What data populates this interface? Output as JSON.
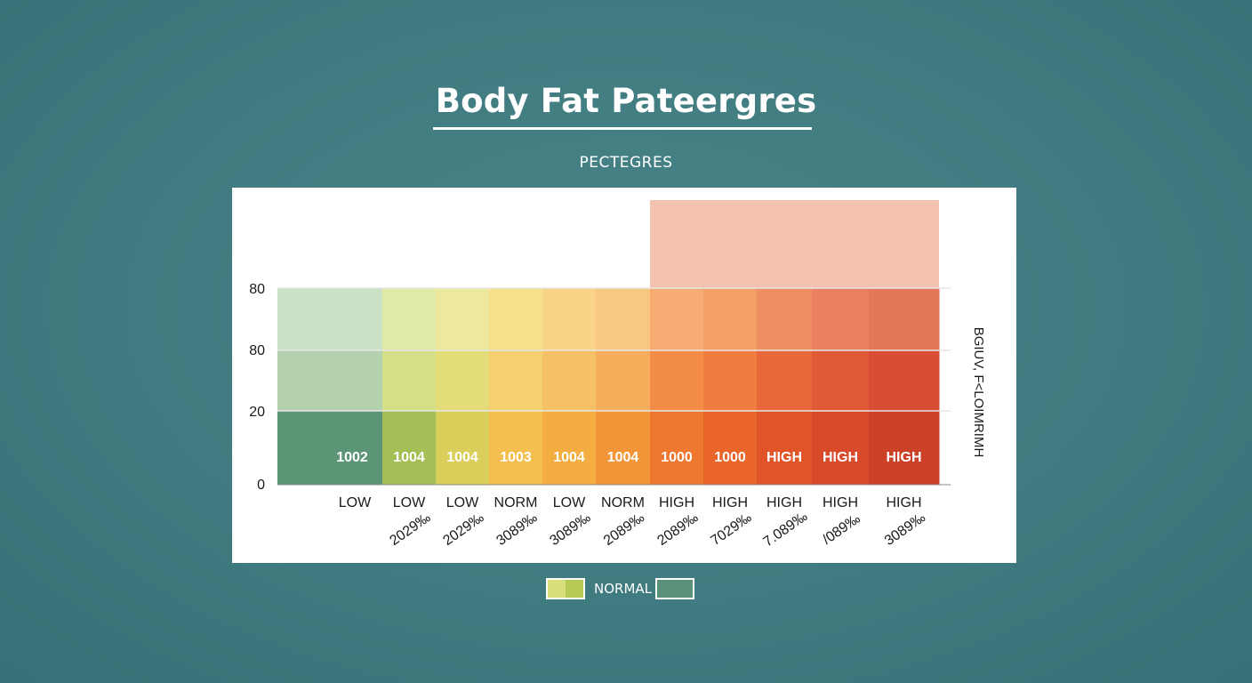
{
  "title": "Body Fat Pateergres",
  "subtitle": "PECTEGRES",
  "chart_data": {
    "type": "heatmap",
    "title": "Body Fat Pateergres",
    "subtitle": "PECTEGRES",
    "ylabel": "BGIUV, F<LOIMRIMH",
    "y_ticks": [
      "80",
      "80",
      "20",
      "0"
    ],
    "grid": true,
    "columns": [
      {
        "bar_label": "1002",
        "category": "LOW",
        "value_label": "",
        "color_top": "#c9e2c6",
        "color_mid": "#b3d1ad",
        "color_bot": "#5d9577"
      },
      {
        "bar_label": "1004",
        "category": "LOW",
        "value_label": "2029‰",
        "color_top": "#dfeaa8",
        "color_mid": "#d4df88",
        "color_bot": "#a5bf57"
      },
      {
        "bar_label": "1004",
        "category": "LOW",
        "value_label": "2029‰",
        "color_top": "#ece89c",
        "color_mid": "#e4dc78",
        "color_bot": "#dacf5a"
      },
      {
        "bar_label": "1003",
        "category": "NORM",
        "value_label": "3089‰",
        "color_top": "#f8e08a",
        "color_mid": "#f6cf6e",
        "color_bot": "#f4be50"
      },
      {
        "bar_label": "1004",
        "category": "LOW",
        "value_label": "3089‰",
        "color_top": "#f8d388",
        "color_mid": "#f6c064",
        "color_bot": "#f4ad40"
      },
      {
        "bar_label": "1004",
        "category": "NORM",
        "value_label": "2089‰",
        "color_top": "#f8c882",
        "color_mid": "#f6ae5c",
        "color_bot": "#f3963a"
      },
      {
        "bar_label": "1000",
        "category": "HIGH",
        "value_label": "2089‰",
        "color_top": "#f6ac72",
        "color_mid": "#f38c48",
        "color_bot": "#ee7830"
      },
      {
        "bar_label": "1000",
        "category": "HIGH",
        "value_label": "7029‰",
        "color_top": "#f59f68",
        "color_mid": "#f07c40",
        "color_bot": "#ea652a"
      },
      {
        "bar_label": "HIGH",
        "category": "HIGH",
        "value_label": "7.089‰",
        "color_top": "#ee8e62",
        "color_mid": "#e8683a",
        "color_bot": "#e05428"
      },
      {
        "bar_label": "HIGH",
        "category": "HIGH",
        "value_label": "/089‰",
        "color_top": "#ea8060",
        "color_mid": "#e05a36",
        "color_bot": "#d84a2a"
      },
      {
        "bar_label": "HIGH",
        "category": "HIGH",
        "value_label": "3089‰",
        "color_top": "#e4765a",
        "color_mid": "#d84e34",
        "color_bot": "#cc4028"
      }
    ],
    "highlight_color": "#f3c2b0"
  },
  "legend": {
    "label": "NORMAL",
    "swatch_left_colors": [
      "#d6df79",
      "#b7cb54"
    ],
    "swatch_right_color": "#5a907a"
  }
}
